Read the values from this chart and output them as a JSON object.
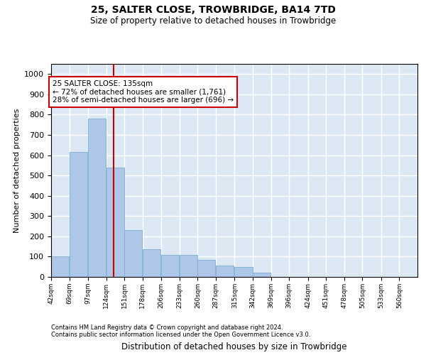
{
  "title": "25, SALTER CLOSE, TROWBRIDGE, BA14 7TD",
  "subtitle": "Size of property relative to detached houses in Trowbridge",
  "xlabel": "Distribution of detached houses by size in Trowbridge",
  "ylabel": "Number of detached properties",
  "bar_color": "#aec6e8",
  "bar_edge_color": "#7aafd4",
  "background_color": "#dce9f5",
  "grid_color": "#ffffff",
  "red_line_value": 135,
  "annotation_text": "25 SALTER CLOSE: 135sqm\n← 72% of detached houses are smaller (1,761)\n28% of semi-detached houses are larger (696) →",
  "annotation_box_color": "#ffffff",
  "annotation_box_edge": "#cc0000",
  "footer_line1": "Contains HM Land Registry data © Crown copyright and database right 2024.",
  "footer_line2": "Contains public sector information licensed under the Open Government Licence v3.0.",
  "bin_edges": [
    42,
    69,
    97,
    124,
    151,
    178,
    206,
    233,
    260,
    287,
    315,
    342,
    369,
    396,
    424,
    451,
    478,
    505,
    533,
    560,
    587
  ],
  "bar_heights": [
    100,
    615,
    780,
    540,
    230,
    135,
    110,
    110,
    85,
    55,
    50,
    20,
    0,
    0,
    0,
    0,
    0,
    0,
    0,
    0
  ],
  "ylim": [
    0,
    1050
  ],
  "yticks": [
    0,
    100,
    200,
    300,
    400,
    500,
    600,
    700,
    800,
    900,
    1000
  ]
}
